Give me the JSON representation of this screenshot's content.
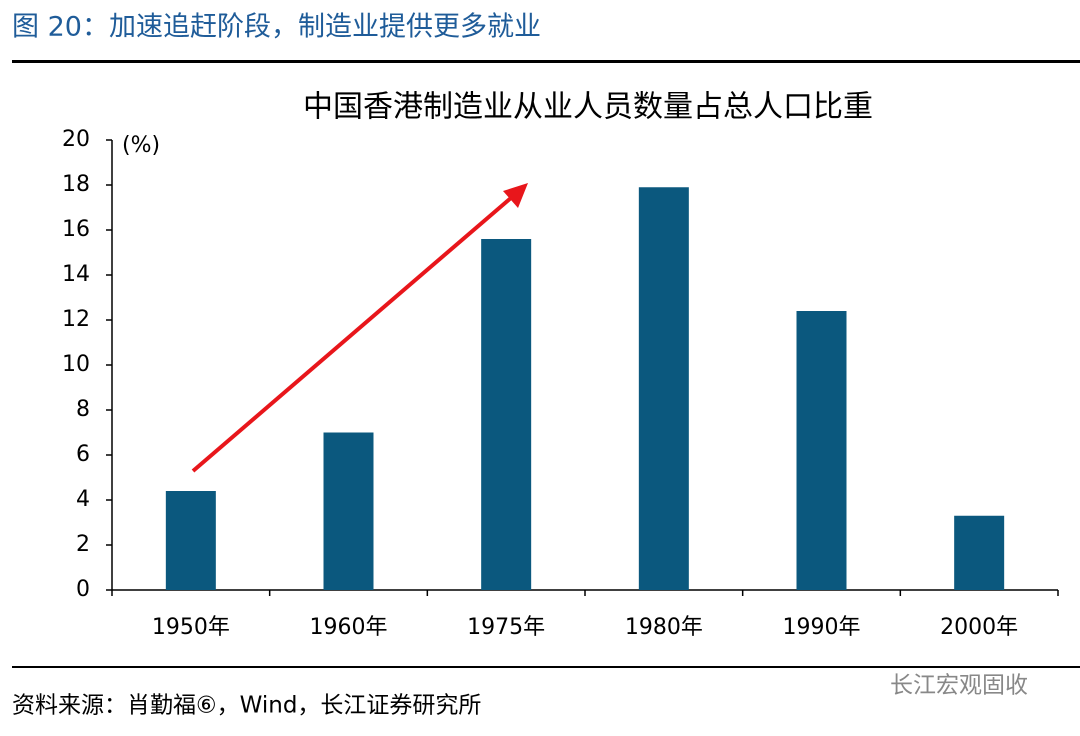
{
  "figure_title": "图 20：加速追赶阶段，制造业提供更多就业",
  "chart_data": {
    "type": "bar",
    "title": "中国香港制造业从业人员数量占总人口比重",
    "y_label": "(%)",
    "categories": [
      "1950年",
      "1960年",
      "1975年",
      "1980年",
      "1990年",
      "2000年"
    ],
    "values": [
      4.4,
      7.0,
      15.6,
      17.9,
      12.4,
      3.3
    ],
    "color": "#0b587e",
    "ylim": [
      0,
      20
    ],
    "yticks": [
      0,
      2,
      4,
      6,
      8,
      10,
      12,
      14,
      16,
      18,
      20
    ],
    "grid": false
  },
  "source": "资料来源：肖勤福⑥，Wind，长江证券研究所",
  "watermark": "长江宏观固收"
}
